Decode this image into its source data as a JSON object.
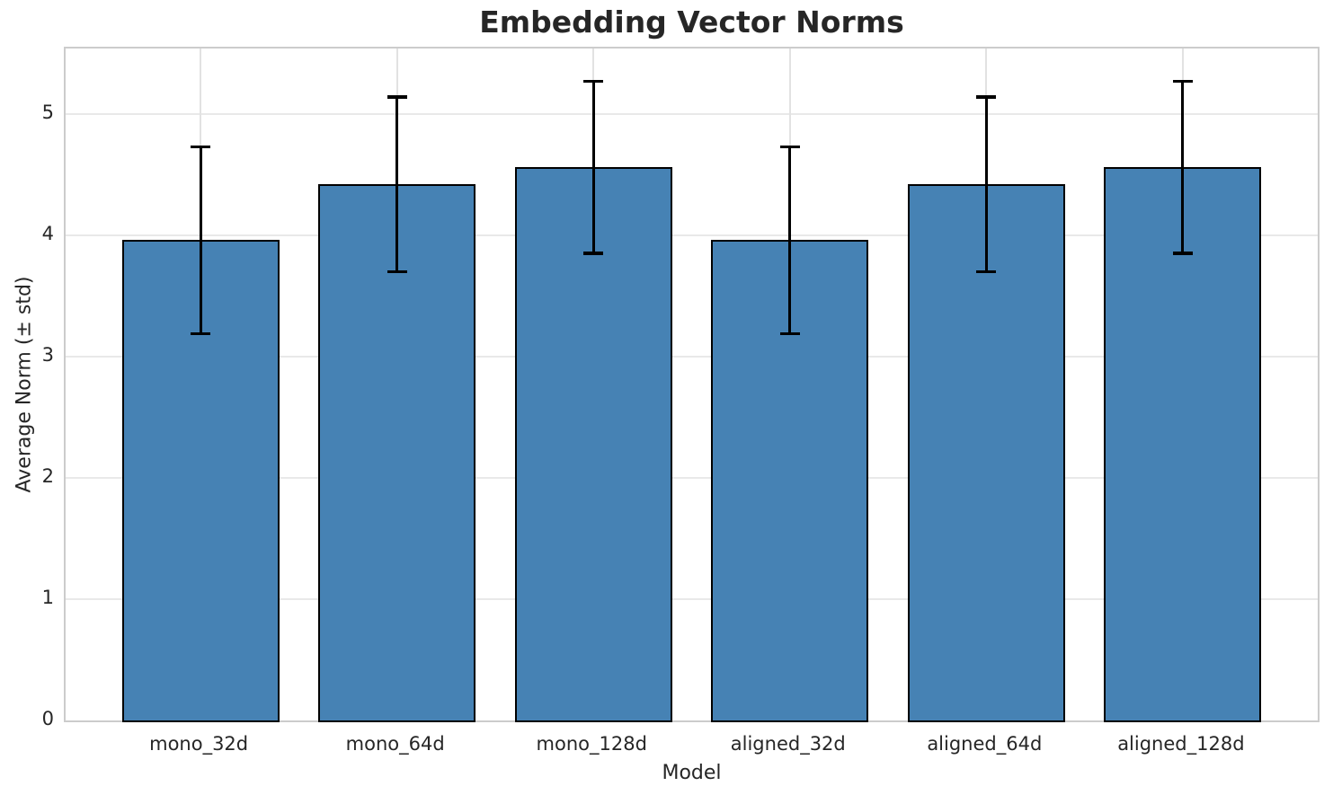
{
  "chart_data": {
    "type": "bar",
    "title": "Embedding Vector Norms",
    "xlabel": "Model",
    "ylabel": "Average Norm (± std)",
    "categories": [
      "mono_32d",
      "mono_64d",
      "mono_128d",
      "aligned_32d",
      "aligned_64d",
      "aligned_128d"
    ],
    "values": [
      3.96,
      4.42,
      4.56,
      3.96,
      4.42,
      4.56
    ],
    "error_std": [
      0.77,
      0.72,
      0.71,
      0.77,
      0.72,
      0.71
    ],
    "error_top": [
      4.73,
      5.14,
      5.27,
      4.73,
      5.14,
      5.27
    ],
    "error_bottom": [
      3.19,
      3.7,
      3.85,
      3.19,
      3.7,
      3.85
    ],
    "ylim": [
      0,
      5.54
    ],
    "yticks": [
      0,
      1,
      2,
      3,
      4,
      5
    ],
    "bar_width_fraction": 0.8,
    "grid": "both",
    "legend": "none",
    "colors": {
      "bar_fill": "#4682b4",
      "bar_edge": "#000000",
      "error_bar": "#000000",
      "grid_h": "#e9e9e9",
      "grid_v": "#e2e2e2",
      "spine": "#cccccc",
      "text": "#262626",
      "background": "#ffffff"
    }
  }
}
